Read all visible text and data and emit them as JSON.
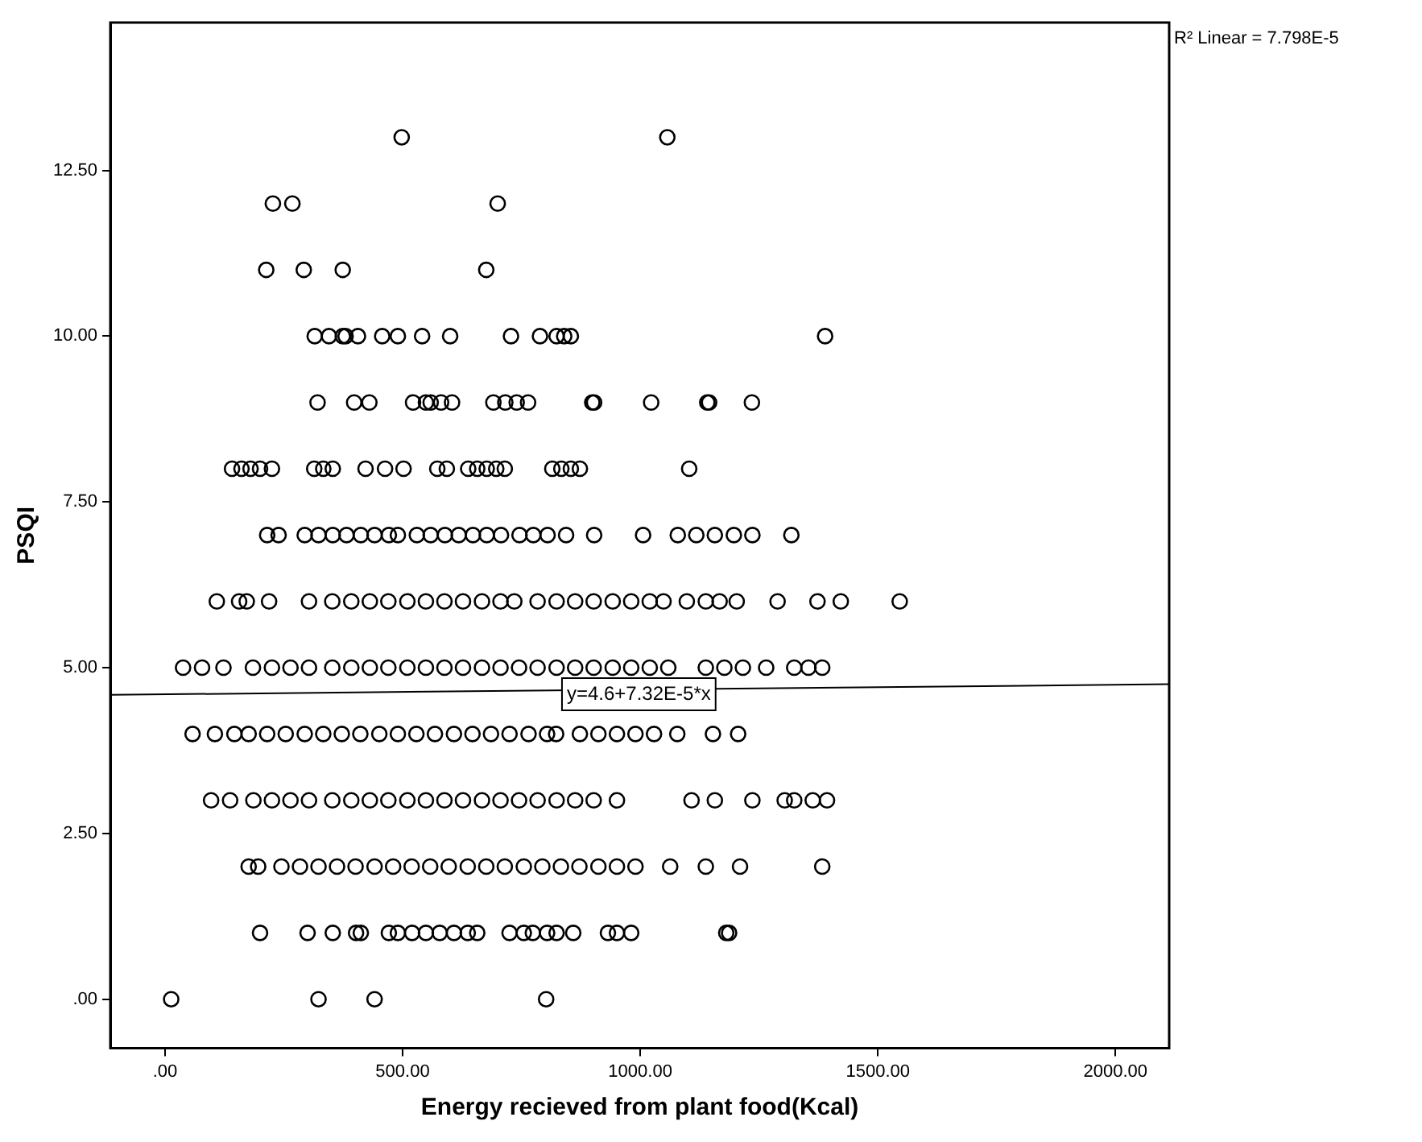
{
  "chart_data": {
    "type": "scatter",
    "xlabel": "Energy recieved from plant food(Kcal)",
    "ylabel": "PSQI",
    "xlim": [
      -115,
      2113
    ],
    "ylim": [
      -0.74,
      14.73
    ],
    "xticks": [
      {
        "value": 0,
        "label": ".00"
      },
      {
        "value": 500,
        "label": "500.00"
      },
      {
        "value": 1000,
        "label": "1000.00"
      },
      {
        "value": 1500,
        "label": "1500.00"
      },
      {
        "value": 2000,
        "label": "2000.00"
      }
    ],
    "yticks": [
      {
        "value": 0,
        "label": ".00"
      },
      {
        "value": 2.5,
        "label": "2.50"
      },
      {
        "value": 5,
        "label": "5.00"
      },
      {
        "value": 7.5,
        "label": "7.50"
      },
      {
        "value": 10,
        "label": "10.00"
      },
      {
        "value": 12.5,
        "label": "12.50"
      }
    ],
    "grid": false,
    "legend": false,
    "annotations": [
      "R² Linear = 7.798E-5",
      {
        "text": "y=4.6+7.32E-5*x",
        "x": 997,
        "y": 4.6
      }
    ],
    "series": [
      {
        "marker": "circle",
        "color": "#000000",
        "x": [
          498,
          1057,
          227,
          268,
          700,
          213,
          292,
          374,
          676,
          315,
          345,
          374,
          380,
          406,
          457,
          490,
          541,
          600,
          728,
          789,
          824,
          840,
          854,
          1389,
          321,
          398,
          430,
          522,
          549,
          559,
          581,
          604,
          691,
          716,
          740,
          764,
          899,
          903,
          1023,
          1141,
          1145,
          1235,
          141,
          161,
          180,
          200,
          225,
          314,
          333,
          353,
          422,
          463,
          502,
          573,
          593,
          638,
          657,
          677,
          697,
          715,
          815,
          834,
          854,
          873,
          1103,
          215,
          239,
          294,
          323,
          353,
          382,
          412,
          441,
          471,
          490,
          530,
          559,
          589,
          618,
          648,
          677,
          707,
          746,
          775,
          805,
          844,
          903,
          1006,
          1079,
          1118,
          1157,
          1197,
          1236,
          1318,
          109,
          156,
          172,
          219,
          303,
          352,
          392,
          431,
          470,
          510,
          549,
          588,
          627,
          667,
          706,
          735,
          784,
          824,
          863,
          902,
          942,
          981,
          1020,
          1049,
          1098,
          1138,
          1167,
          1203,
          1289,
          1373,
          1422,
          1546,
          38,
          78,
          123,
          185,
          225,
          264,
          303,
          352,
          392,
          431,
          470,
          510,
          549,
          588,
          627,
          667,
          706,
          745,
          784,
          824,
          863,
          902,
          942,
          981,
          1020,
          1059,
          1138,
          1177,
          1216,
          1265,
          1324,
          1354,
          1383,
          58,
          105,
          146,
          176,
          215,
          254,
          294,
          333,
          372,
          411,
          451,
          490,
          529,
          568,
          608,
          647,
          686,
          725,
          765,
          804,
          823,
          873,
          912,
          951,
          990,
          1029,
          1078,
          1153,
          1206,
          97,
          137,
          186,
          225,
          264,
          303,
          352,
          392,
          431,
          470,
          510,
          549,
          588,
          627,
          667,
          706,
          745,
          784,
          824,
          863,
          902,
          951,
          1108,
          1157,
          1236,
          1304,
          1324,
          1363,
          1393,
          176,
          196,
          245,
          284,
          323,
          362,
          401,
          441,
          480,
          519,
          558,
          597,
          637,
          676,
          715,
          755,
          794,
          833,
          872,
          912,
          951,
          990,
          1063,
          1138,
          1210,
          1383,
          200,
          300,
          353,
          402,
          412,
          471,
          490,
          520,
          549,
          578,
          608,
          637,
          657,
          725,
          755,
          774,
          804,
          824,
          859,
          932,
          951,
          981,
          1181,
          1187,
          13,
          323,
          441,
          802
        ],
        "values": [
          13,
          13,
          12,
          12,
          12,
          11,
          11,
          11,
          11,
          10,
          10,
          10,
          10,
          10,
          10,
          10,
          10,
          10,
          10,
          10,
          10,
          10,
          10,
          10,
          9,
          9,
          9,
          9,
          9,
          9,
          9,
          9,
          9,
          9,
          9,
          9,
          9,
          9,
          9,
          9,
          9,
          9,
          8,
          8,
          8,
          8,
          8,
          8,
          8,
          8,
          8,
          8,
          8,
          8,
          8,
          8,
          8,
          8,
          8,
          8,
          8,
          8,
          8,
          8,
          8,
          7,
          7,
          7,
          7,
          7,
          7,
          7,
          7,
          7,
          7,
          7,
          7,
          7,
          7,
          7,
          7,
          7,
          7,
          7,
          7,
          7,
          7,
          7,
          7,
          7,
          7,
          7,
          7,
          7,
          6,
          6,
          6,
          6,
          6,
          6,
          6,
          6,
          6,
          6,
          6,
          6,
          6,
          6,
          6,
          6,
          6,
          6,
          6,
          6,
          6,
          6,
          6,
          6,
          6,
          6,
          6,
          6,
          6,
          6,
          6,
          6,
          5,
          5,
          5,
          5,
          5,
          5,
          5,
          5,
          5,
          5,
          5,
          5,
          5,
          5,
          5,
          5,
          5,
          5,
          5,
          5,
          5,
          5,
          5,
          5,
          5,
          5,
          5,
          5,
          5,
          5,
          5,
          5,
          5,
          4,
          4,
          4,
          4,
          4,
          4,
          4,
          4,
          4,
          4,
          4,
          4,
          4,
          4,
          4,
          4,
          4,
          4,
          4,
          4,
          4,
          4,
          4,
          4,
          4,
          4,
          4,
          4,
          4,
          3,
          3,
          3,
          3,
          3,
          3,
          3,
          3,
          3,
          3,
          3,
          3,
          3,
          3,
          3,
          3,
          3,
          3,
          3,
          3,
          3,
          3,
          3,
          3,
          3,
          3,
          3,
          3,
          3,
          2,
          2,
          2,
          2,
          2,
          2,
          2,
          2,
          2,
          2,
          2,
          2,
          2,
          2,
          2,
          2,
          2,
          2,
          2,
          2,
          2,
          2,
          2,
          2,
          2,
          2,
          1,
          1,
          1,
          1,
          1,
          1,
          1,
          1,
          1,
          1,
          1,
          1,
          1,
          1,
          1,
          1,
          1,
          1,
          1,
          1,
          1,
          1,
          1,
          1,
          0,
          0,
          0,
          0
        ]
      },
      {
        "type": "line",
        "color": "#000000",
        "x": [
          -115,
          2113
        ],
        "values": [
          4.59,
          4.75
        ]
      }
    ]
  }
}
